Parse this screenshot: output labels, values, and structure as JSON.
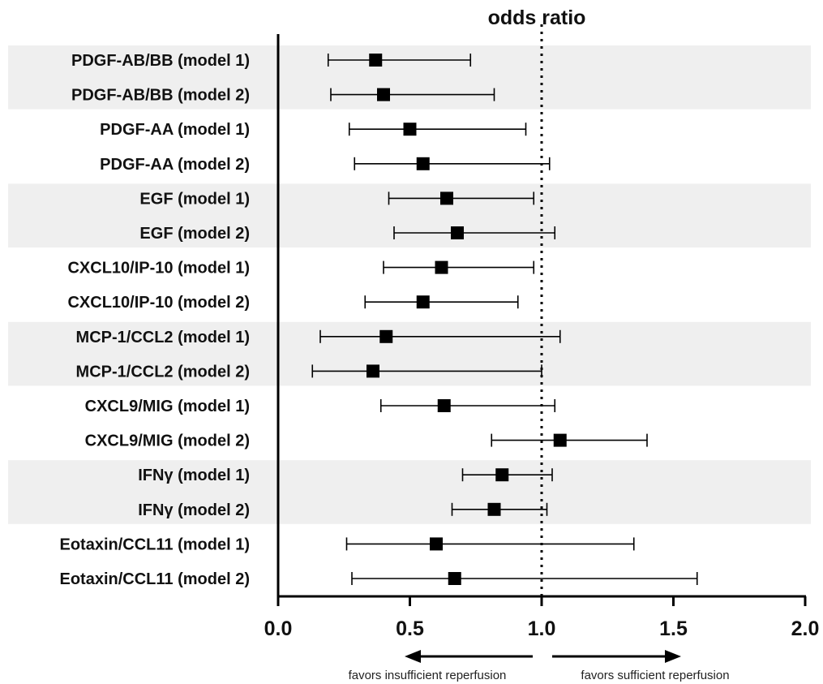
{
  "chart_data": {
    "type": "forest",
    "title": "odds ratio",
    "xlim": [
      0.0,
      2.0
    ],
    "xticks": [
      "0.0",
      "0.5",
      "1.0",
      "1.5",
      "2.0"
    ],
    "reference_line": 1.0,
    "reference_style": "dotted",
    "band_color": "#efefef",
    "marker_color": "#000000",
    "rows": [
      {
        "label": "PDGF-AB/BB (model 1)",
        "or": 0.37,
        "lo": 0.19,
        "hi": 0.73
      },
      {
        "label": "PDGF-AB/BB (model 2)",
        "or": 0.4,
        "lo": 0.2,
        "hi": 0.82
      },
      {
        "label": "PDGF-AA (model 1)",
        "or": 0.5,
        "lo": 0.27,
        "hi": 0.94
      },
      {
        "label": "PDGF-AA (model 2)",
        "or": 0.55,
        "lo": 0.29,
        "hi": 1.03
      },
      {
        "label": "EGF (model 1)",
        "or": 0.64,
        "lo": 0.42,
        "hi": 0.97
      },
      {
        "label": "EGF (model 2)",
        "or": 0.68,
        "lo": 0.44,
        "hi": 1.05
      },
      {
        "label": "CXCL10/IP-10 (model 1)",
        "or": 0.62,
        "lo": 0.4,
        "hi": 0.97
      },
      {
        "label": "CXCL10/IP-10 (model 2)",
        "or": 0.55,
        "lo": 0.33,
        "hi": 0.91
      },
      {
        "label": "MCP-1/CCL2 (model 1)",
        "or": 0.41,
        "lo": 0.16,
        "hi": 1.07
      },
      {
        "label": "MCP-1/CCL2 (model 2)",
        "or": 0.36,
        "lo": 0.13,
        "hi": 1.0
      },
      {
        "label": "CXCL9/MIG (model 1)",
        "or": 0.63,
        "lo": 0.39,
        "hi": 1.05
      },
      {
        "label": "CXCL9/MIG (model 2)",
        "or": 1.07,
        "lo": 0.81,
        "hi": 1.4
      },
      {
        "label": "IFNγ (model 1)",
        "or": 0.85,
        "lo": 0.7,
        "hi": 1.04
      },
      {
        "label": "IFNγ (model 2)",
        "or": 0.82,
        "lo": 0.66,
        "hi": 1.02
      },
      {
        "label": "Eotaxin/CCL11 (model 1)",
        "or": 0.6,
        "lo": 0.26,
        "hi": 1.35
      },
      {
        "label": "Eotaxin/CCL11 (model 2)",
        "or": 0.67,
        "lo": 0.28,
        "hi": 1.59
      }
    ],
    "annotations": {
      "left": "favors insufficient reperfusion",
      "right": "favors sufficient reperfusion"
    }
  }
}
